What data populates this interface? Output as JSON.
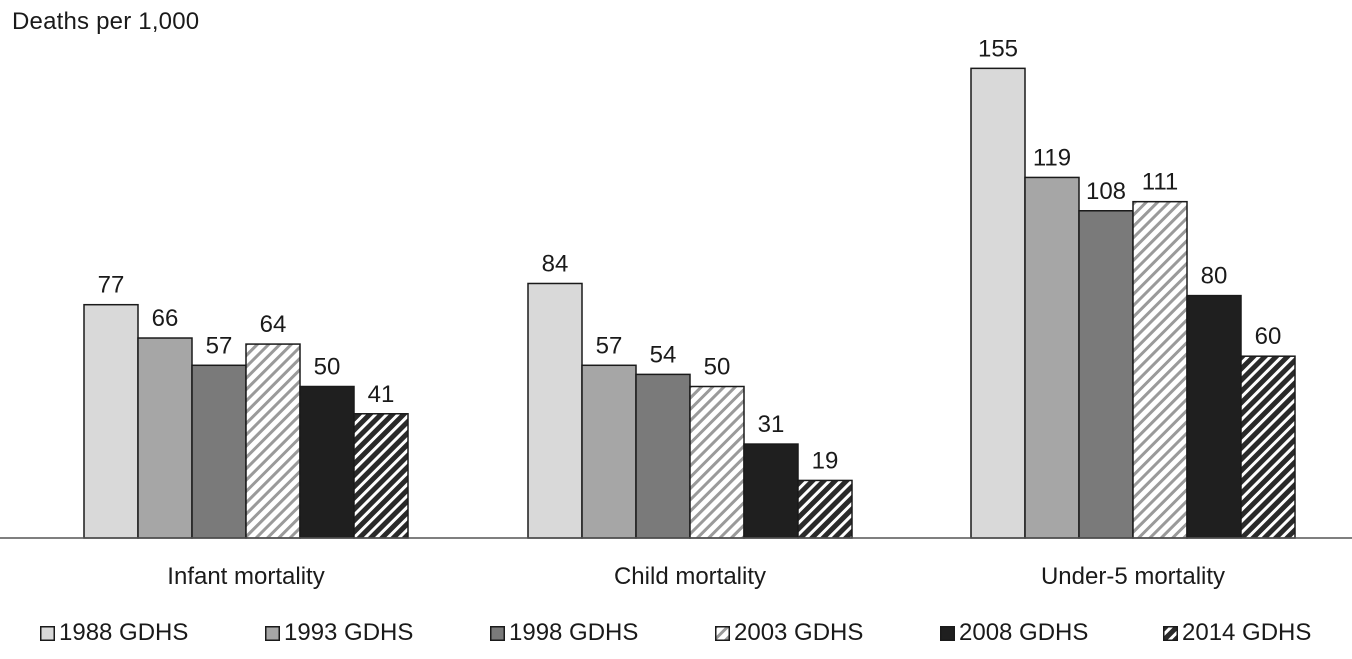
{
  "chart_data": {
    "type": "bar",
    "title": "",
    "ylabel": "Deaths per 1,000",
    "xlabel": "",
    "ylim": [
      0,
      160
    ],
    "grid": false,
    "legend_position": "bottom",
    "categories": [
      "Infant mortality",
      "Child mortality",
      "Under-5 mortality"
    ],
    "series": [
      {
        "name": "1988 GDHS",
        "values": [
          77,
          84,
          155
        ],
        "color": "#d9d9d9",
        "pattern": "solid"
      },
      {
        "name": "1993 GDHS",
        "values": [
          66,
          57,
          119
        ],
        "color": "#a6a6a6",
        "pattern": "solid"
      },
      {
        "name": "1998 GDHS",
        "values": [
          57,
          54,
          108
        ],
        "color": "#7a7a7a",
        "pattern": "solid"
      },
      {
        "name": "2003 GDHS",
        "values": [
          64,
          50,
          111
        ],
        "color": "#ffffff",
        "pattern": "light-diagonal"
      },
      {
        "name": "2008 GDHS",
        "values": [
          50,
          31,
          80
        ],
        "color": "#1f1f1f",
        "pattern": "solid"
      },
      {
        "name": "2014 GDHS",
        "values": [
          41,
          19,
          60
        ],
        "color": "#ffffff",
        "pattern": "dark-diagonal"
      }
    ]
  }
}
